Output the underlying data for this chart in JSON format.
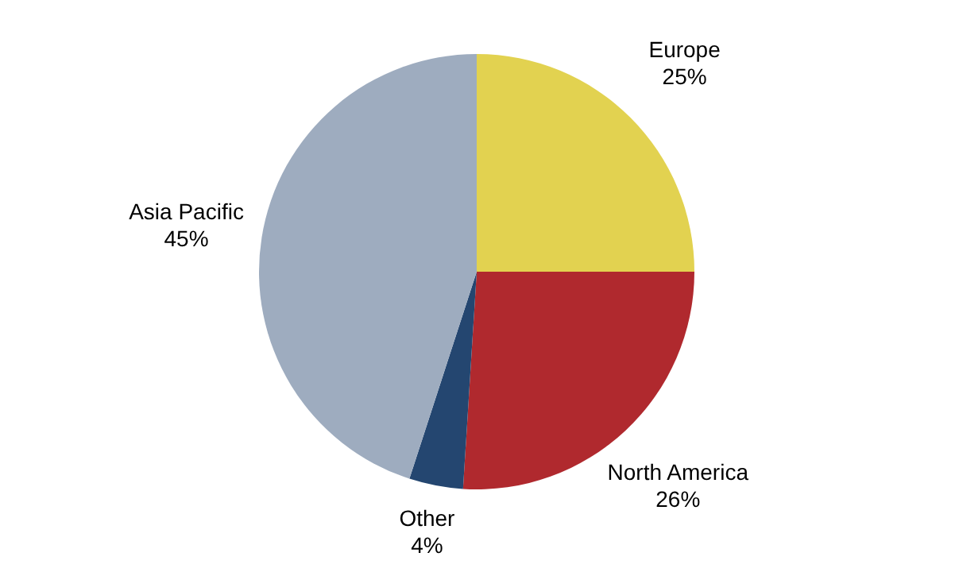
{
  "chart_data": {
    "type": "pie",
    "categories": [
      "Europe",
      "North America",
      "Other",
      "Asia Pacific"
    ],
    "values": [
      25,
      26,
      4,
      45
    ],
    "value_labels": [
      "25%",
      "26%",
      "4%",
      "45%"
    ],
    "colors": [
      "#e2d250",
      "#b0292e",
      "#244670",
      "#9eacbf"
    ],
    "legend": false
  }
}
